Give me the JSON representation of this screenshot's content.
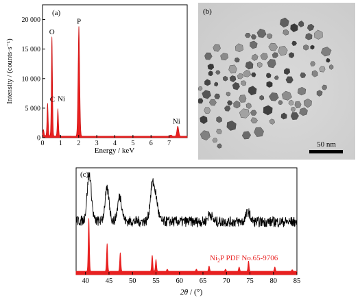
{
  "chart_data": [
    {
      "panel": "(a)",
      "type": "area",
      "xlabel": "Energy / keV",
      "ylabel": "Intensity / (counts·s⁻¹)",
      "xlim": [
        0,
        8
      ],
      "ylim": [
        0,
        22500
      ],
      "xticks": [
        0,
        1,
        2,
        3,
        4,
        5,
        6,
        7
      ],
      "yticks": [
        0,
        5000,
        10000,
        15000,
        20000
      ],
      "ytick_labels": [
        "0",
        "5 000",
        "10 000",
        "15 000",
        "20 000"
      ],
      "color": "#e82020",
      "peaks": [
        {
          "label": "C",
          "x": 0.28,
          "y": 5500
        },
        {
          "label": "O",
          "x": 0.52,
          "y": 16800
        },
        {
          "label": "Ni",
          "x": 0.85,
          "y": 4600
        },
        {
          "label": "P",
          "x": 2.01,
          "y": 18600
        },
        {
          "label": "Ni",
          "x": 7.48,
          "y": 1700
        }
      ],
      "minor_peaks": [
        {
          "x": 0.05,
          "y": 1000
        },
        {
          "x": 7.1,
          "y": 200
        }
      ]
    },
    {
      "panel": "(c)",
      "type": "line",
      "xlabel": "2θ / (°)",
      "xlim": [
        38,
        85
      ],
      "xticks": [
        40,
        45,
        50,
        55,
        60,
        65,
        70,
        75,
        80,
        85
      ],
      "series": [
        {
          "role": "measured pattern",
          "color": "#000000",
          "peaks": [
            {
              "x": 40.8,
              "y": 0.72
            },
            {
              "x": 44.6,
              "y": 0.48
            },
            {
              "x": 47.3,
              "y": 0.38
            },
            {
              "x": 54.2,
              "y": 0.52
            },
            {
              "x": 55.0,
              "y": 0.3
            },
            {
              "x": 66.5,
              "y": 0.12
            },
            {
              "x": 74.6,
              "y": 0.15
            }
          ]
        },
        {
          "name": "Ni₂P PDF No.65-9706",
          "name_parts": [
            "Ni",
            "2",
            "P PDF No.65-9706"
          ],
          "role": "reference",
          "color": "#e82020",
          "peaks": [
            {
              "x": 40.7,
              "y": 1.0
            },
            {
              "x": 44.6,
              "y": 0.52
            },
            {
              "x": 47.4,
              "y": 0.35
            },
            {
              "x": 54.2,
              "y": 0.3
            },
            {
              "x": 55.0,
              "y": 0.22
            },
            {
              "x": 57.4,
              "y": 0.04
            },
            {
              "x": 63.6,
              "y": 0.04
            },
            {
              "x": 66.3,
              "y": 0.1
            },
            {
              "x": 69.8,
              "y": 0.04
            },
            {
              "x": 72.7,
              "y": 0.08
            },
            {
              "x": 74.7,
              "y": 0.19
            },
            {
              "x": 80.3,
              "y": 0.08
            },
            {
              "x": 84.0,
              "y": 0.03
            }
          ]
        }
      ]
    }
  ],
  "image_panel": {
    "panel": "(b)",
    "scale_bar": "50 nm"
  }
}
